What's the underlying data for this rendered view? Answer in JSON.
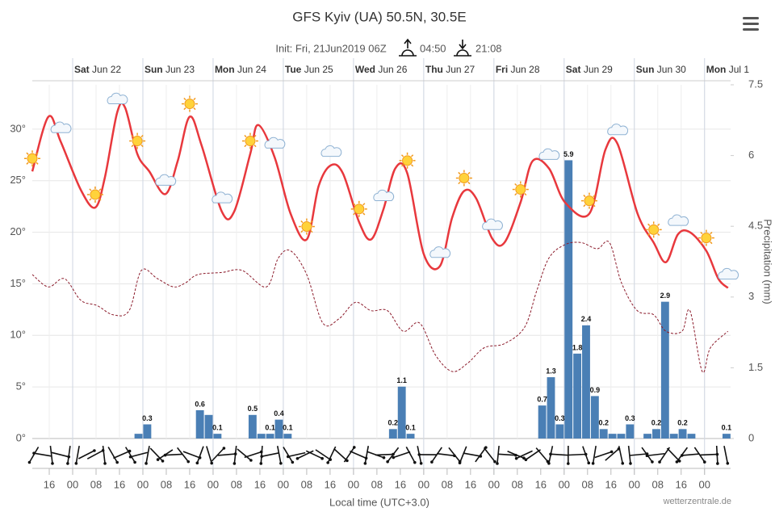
{
  "chart_data": {
    "type": "meteogram",
    "title": "GFS Kyiv (UA) 50.5N, 30.5E",
    "subtitle": "Init: Fri, 21Jun2019 06Z",
    "sunrise": "04:50",
    "sunset": "21:08",
    "x_label": "Local time (UTC+3.0)",
    "y2_label": "Precipitation (mm)",
    "credit": "wetterzentrale.de",
    "grid": true,
    "xlim": [
      -13.8,
      224.9
    ],
    "xticks": [
      {
        "value": -8,
        "label": "16"
      },
      {
        "value": 0,
        "label": "00"
      },
      {
        "value": 8,
        "label": "08"
      },
      {
        "value": 16,
        "label": "16"
      },
      {
        "value": 24,
        "label": "00"
      },
      {
        "value": 32,
        "label": "08"
      },
      {
        "value": 40,
        "label": "16"
      },
      {
        "value": 48,
        "label": "00"
      },
      {
        "value": 56,
        "label": "08"
      },
      {
        "value": 64,
        "label": "16"
      },
      {
        "value": 72,
        "label": "00"
      },
      {
        "value": 80,
        "label": "08"
      },
      {
        "value": 88,
        "label": "16"
      },
      {
        "value": 96,
        "label": "00"
      },
      {
        "value": 104,
        "label": "08"
      },
      {
        "value": 112,
        "label": "16"
      },
      {
        "value": 120,
        "label": "00"
      },
      {
        "value": 128,
        "label": "08"
      },
      {
        "value": 136,
        "label": "16"
      },
      {
        "value": 144,
        "label": "00"
      },
      {
        "value": 152,
        "label": "08"
      },
      {
        "value": 160,
        "label": "16"
      },
      {
        "value": 168,
        "label": "00"
      },
      {
        "value": 176,
        "label": "08"
      },
      {
        "value": 184,
        "label": "16"
      },
      {
        "value": 192,
        "label": "00"
      },
      {
        "value": 200,
        "label": "08"
      },
      {
        "value": 208,
        "label": "16"
      },
      {
        "value": 216,
        "label": "00"
      }
    ],
    "day_ticks": [
      {
        "value": 0,
        "label": "Sat Jun 22"
      },
      {
        "value": 24,
        "label": "Sun Jun 23"
      },
      {
        "value": 48,
        "label": "Mon Jun 24"
      },
      {
        "value": 72,
        "label": "Tue Jun 25"
      },
      {
        "value": 96,
        "label": "Wed Jun 26"
      },
      {
        "value": 120,
        "label": "Thu Jun 27"
      },
      {
        "value": 144,
        "label": "Fri Jun 28"
      },
      {
        "value": 168,
        "label": "Sat Jun 29"
      },
      {
        "value": 192,
        "label": "Sun Jun 30"
      },
      {
        "value": 216,
        "label": "Mon Jul 1"
      }
    ],
    "ylim": [
      0,
      34.3
    ],
    "yticks": [
      {
        "value": 0,
        "label": "0°"
      },
      {
        "value": 5,
        "label": "5°"
      },
      {
        "value": 10,
        "label": "10°"
      },
      {
        "value": 15,
        "label": "15°"
      },
      {
        "value": 20,
        "label": "20°"
      },
      {
        "value": 25,
        "label": "25°"
      },
      {
        "value": 30,
        "label": "30°"
      }
    ],
    "y2lim": [
      0,
      7.5
    ],
    "y2ticks": [
      0,
      1.5,
      3,
      4.5,
      6,
      7.5
    ],
    "series": [
      {
        "type": "line",
        "color": "#e8383d",
        "dashed": false,
        "x": [
          -13.8,
          -8.3,
          -4.1,
          2.8,
          7.7,
          11,
          15.2,
          17.9,
          22.1,
          26.2,
          31.7,
          35.9,
          40,
          44.1,
          51,
          55.2,
          60.7,
          63.4,
          69,
          74.5,
          80,
          84.1,
          88.3,
          92.4,
          97.9,
          102,
          106.2,
          110.3,
          114.4,
          120,
          125.5,
          129.7,
          133.8,
          137.9,
          143.4,
          147.6,
          153.1,
          157.2,
          162.8,
          168.3,
          176.6,
          182.1,
          186.2,
          193.1,
          198.6,
          202.8,
          206.9,
          211,
          216.6,
          220.7,
          224
        ],
        "values": [
          25.9,
          31.2,
          28.8,
          24.1,
          22.4,
          25.3,
          31.6,
          32.1,
          27.6,
          25.9,
          23.7,
          26.9,
          31.2,
          28.4,
          22.0,
          22.0,
          27.6,
          30.4,
          27.3,
          21.8,
          19.3,
          24.5,
          26.5,
          25.7,
          21.0,
          19.3,
          22.2,
          26.2,
          25.7,
          17.9,
          16.7,
          21.4,
          24.0,
          23.3,
          19.4,
          19.0,
          22.9,
          26.9,
          26.2,
          22.9,
          21.8,
          28.0,
          28.6,
          21.8,
          19.0,
          17.1,
          19.8,
          20.0,
          18.2,
          15.5,
          14.6
        ]
      },
      {
        "type": "line",
        "color": "#8b1a2a",
        "dashed": true,
        "x": [
          -13.8,
          -8.3,
          -2.8,
          2.8,
          8.3,
          13.8,
          19.3,
          23.5,
          29,
          34.5,
          38.6,
          42.8,
          51,
          57.9,
          66.2,
          70.3,
          74.5,
          80,
          85.5,
          91,
          96.6,
          102,
          107.6,
          113,
          118.6,
          124,
          129.7,
          135,
          140.7,
          147.6,
          154.5,
          158.6,
          162.8,
          168.3,
          173.8,
          179.3,
          183.5,
          187.6,
          193,
          198.6,
          202.8,
          208.3,
          211,
          215.2,
          218,
          224
        ],
        "values": [
          15.9,
          14.7,
          15.5,
          13.4,
          12.9,
          12.0,
          12.4,
          16.3,
          15.5,
          14.7,
          15.1,
          15.9,
          16.1,
          16.3,
          14.7,
          17.5,
          18.2,
          15.9,
          11.2,
          11.6,
          13.2,
          12.4,
          12.4,
          10.4,
          11.2,
          8.1,
          6.5,
          7.3,
          8.8,
          9.2,
          10.8,
          14.3,
          17.5,
          18.8,
          19.0,
          18.4,
          19.0,
          15.1,
          12.4,
          12.0,
          10.4,
          10.4,
          12.4,
          6.5,
          8.8,
          10.4
        ]
      },
      {
        "type": "bar",
        "axis": "y2",
        "color": "#4a7fb5",
        "x": [
          22.5,
          25.5,
          43.5,
          46.5,
          49.5,
          61.5,
          64.5,
          67.5,
          70.5,
          73.5,
          109.5,
          112.5,
          115.5,
          160.5,
          163.5,
          166.5,
          169.5,
          172.5,
          175.5,
          178.5,
          181.5,
          184.5,
          187.5,
          190.5,
          196.5,
          199.5,
          202.5,
          205.5,
          208.5,
          211.5,
          223.5
        ],
        "values": [
          0.1,
          0.3,
          0.6,
          0.5,
          0.1,
          0.5,
          0.1,
          0.1,
          0.4,
          0.1,
          0.2,
          1.1,
          0.1,
          0.7,
          1.3,
          0.3,
          5.9,
          1.8,
          2.4,
          0.9,
          0.2,
          0.1,
          0.1,
          0.3,
          0.1,
          0.2,
          2.9,
          0.1,
          0.2,
          0.1,
          0.1
        ],
        "value_labels": [
          null,
          "0.3",
          "0.6",
          null,
          "0.1",
          "0.5",
          null,
          "0.1",
          "0.4",
          "0.1",
          "0.2",
          "1.1",
          "0.1",
          "0.7",
          "1.3",
          "0.3",
          "5.9",
          "1.8",
          "2.4",
          "0.9",
          "0.2",
          null,
          null,
          "0.3",
          null,
          "0.2",
          "2.9",
          null,
          "0.2",
          null,
          "0.1"
        ]
      }
    ]
  }
}
